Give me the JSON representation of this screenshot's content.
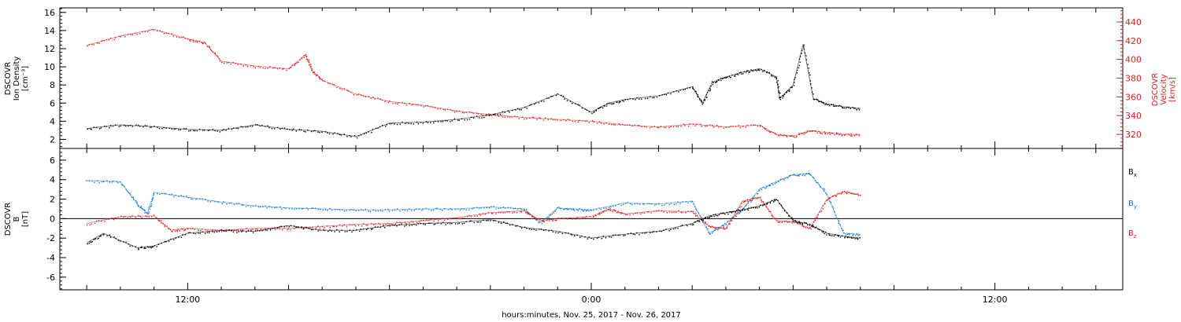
{
  "chart_data": [
    {
      "type": "scatter",
      "panel": "top",
      "left_axis": {
        "label_lines": [
          "DSCOVR",
          "Ion Density",
          "[cm⁻³]"
        ],
        "ylim": [
          1,
          16.5
        ],
        "ticks": [
          2,
          4,
          6,
          8,
          10,
          12,
          14,
          16
        ]
      },
      "right_axis": {
        "label_lines": [
          "DSCOVR",
          "Velocity",
          "[km/s]"
        ],
        "ylim": [
          305,
          455
        ],
        "ticks": [
          320,
          340,
          360,
          380,
          400,
          420,
          440
        ]
      },
      "series": [
        {
          "color": "#000000",
          "axis": "left",
          "x": [
            -15,
            -14,
            -13,
            -12,
            -11,
            -10,
            -9,
            -8,
            -7,
            -6,
            -5,
            -4,
            -3,
            -2,
            -1,
            0,
            0.5,
            1,
            2,
            3,
            3.3,
            3.6,
            4,
            4.5,
            5,
            5.5,
            5.6,
            6,
            6.3,
            6.6,
            7,
            7.5,
            8
          ],
          "y": [
            3.2,
            3.6,
            3.4,
            3.1,
            3.0,
            3.6,
            3.1,
            2.9,
            2.3,
            3.8,
            3.9,
            4.2,
            4.7,
            5.5,
            7.0,
            5.0,
            6.0,
            6.4,
            6.8,
            7.8,
            6.0,
            8.3,
            8.9,
            9.4,
            9.8,
            8.9,
            6.5,
            8.0,
            12.5,
            6.5,
            5.9,
            5.6,
            5.4
          ]
        },
        {
          "color": "#e02020",
          "axis": "right",
          "x": [
            -15,
            -14,
            -13,
            -12,
            -11.5,
            -11,
            -10,
            -9,
            -8.5,
            -8.3,
            -8,
            -7,
            -6,
            -5,
            -4,
            -3,
            -2,
            -1,
            0,
            1,
            2,
            3,
            4,
            5,
            5.5,
            6,
            6.5,
            7,
            7.5,
            8
          ],
          "y": [
            415,
            425,
            432,
            422,
            418,
            398,
            393,
            390,
            405,
            388,
            378,
            363,
            355,
            351,
            345,
            341,
            338,
            336,
            334,
            330,
            328,
            331,
            328,
            330,
            320,
            318,
            324,
            322,
            320,
            320
          ]
        }
      ]
    },
    {
      "type": "scatter",
      "panel": "bottom",
      "left_axis": {
        "label_lines": [
          "DSCOVR",
          "B",
          "[nT]"
        ],
        "ylim": [
          -7.3,
          7.2
        ],
        "ticks": [
          -6,
          -4,
          -2,
          0,
          2,
          4,
          6
        ]
      },
      "zero_line": true,
      "legend": {
        "placement": "right",
        "entries": [
          {
            "label": "B",
            "sub": "x",
            "color": "#000000"
          },
          {
            "label": "B",
            "sub": "y",
            "color": "#1a7ad4"
          },
          {
            "label": "B",
            "sub": "z",
            "color": "#e02020"
          }
        ]
      },
      "series": [
        {
          "color": "#000000",
          "x": [
            -15,
            -14.5,
            -13.5,
            -13,
            -12,
            -11,
            -10,
            -9,
            -8,
            -7,
            -6,
            -5,
            -4,
            -3,
            -2,
            -1,
            0,
            1,
            2,
            3,
            3.5,
            4,
            4.5,
            5,
            5.5,
            6,
            6.5,
            7,
            7.5,
            8
          ],
          "y": [
            -2.5,
            -1.5,
            -3.0,
            -2.8,
            -1.5,
            -1.2,
            -1.3,
            -0.7,
            -1.2,
            -1.2,
            -0.7,
            -0.5,
            -0.4,
            -0.1,
            -0.9,
            -1.3,
            -2.0,
            -1.6,
            -1.3,
            -0.5,
            0.3,
            0.6,
            0.9,
            1.3,
            2.0,
            -0.2,
            -0.6,
            -1.5,
            -1.8,
            -2.0
          ]
        },
        {
          "color": "#1a7ad4",
          "x": [
            -15,
            -14,
            -13.5,
            -13.2,
            -13,
            -12,
            -11,
            -10,
            -9,
            -8,
            -7,
            -6,
            -5,
            -4,
            -3,
            -2,
            -1.5,
            -1,
            -0.5,
            0,
            1,
            2,
            3,
            3.5,
            4,
            4.5,
            5,
            5.5,
            6,
            6.5,
            7,
            7.5,
            8
          ],
          "y": [
            3.9,
            3.8,
            1.5,
            0.5,
            2.7,
            2.2,
            1.7,
            1.3,
            1.1,
            1.0,
            0.9,
            0.9,
            1.0,
            1.0,
            1.2,
            1.0,
            -0.4,
            1.1,
            1.0,
            0.9,
            1.6,
            1.5,
            1.8,
            -1.5,
            -0.5,
            1.0,
            3.0,
            3.8,
            4.5,
            4.6,
            2.5,
            -1.5,
            -1.6
          ]
        },
        {
          "color": "#e02020",
          "x": [
            -15,
            -14,
            -13,
            -12.5,
            -12,
            -11,
            -10,
            -9,
            -8,
            -7,
            -6,
            -5,
            -4,
            -3,
            -2,
            -1.5,
            -1,
            0,
            0.5,
            1,
            2,
            3,
            3.5,
            4,
            4.5,
            5,
            5.5,
            6,
            6.5,
            7,
            7.5,
            8
          ],
          "y": [
            -0.5,
            0.2,
            0.3,
            -1.2,
            -1.0,
            -1.2,
            -1.0,
            -1.0,
            -0.8,
            -0.6,
            -0.5,
            -0.2,
            0.1,
            0.6,
            0.8,
            -0.2,
            0.0,
            0.2,
            1.0,
            0.5,
            0.8,
            0.7,
            -0.8,
            -1.0,
            1.8,
            2.2,
            -0.2,
            -0.3,
            -1.0,
            2.0,
            2.8,
            2.4
          ]
        }
      ]
    }
  ],
  "x_axis": {
    "label": "hours:minutes, Nov. 25, 2017 - Nov. 26, 2017",
    "xlim": [
      -15.8,
      15.8
    ],
    "tick_labels": [
      {
        "x": -12,
        "label": "12:00"
      },
      {
        "x": 0,
        "label": "0:00"
      },
      {
        "x": 12,
        "label": "12:00"
      }
    ]
  }
}
